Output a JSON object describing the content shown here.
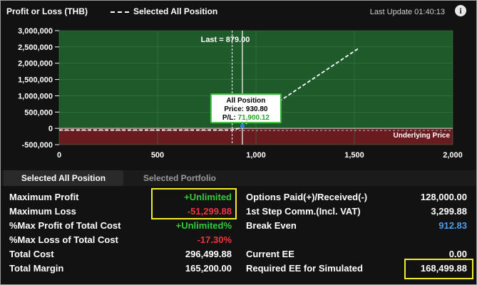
{
  "header": {
    "title": "Profit or Loss (THB)",
    "legend_label": "Selected All Position",
    "last_update": "Last Update 01:40:13",
    "info_icon": "info-icon"
  },
  "chart_data": {
    "type": "line",
    "title": "",
    "xlabel": "",
    "ylabel": "",
    "xlim": [
      0,
      2000
    ],
    "ylim": [
      -500000,
      3000000
    ],
    "x_ticks": [
      0,
      500,
      1000,
      1500,
      2000
    ],
    "x_tick_labels": [
      "0",
      "500",
      "1,000",
      "1,500",
      "2,000"
    ],
    "y_ticks": [
      -500000,
      0,
      500000,
      1000000,
      1500000,
      2000000,
      2500000,
      3000000
    ],
    "y_tick_labels": [
      "-500,000",
      "0",
      "500,000",
      "1,000,000",
      "1,500,000",
      "2,000,000",
      "2,500,000",
      "3,000,000"
    ],
    "series": [
      {
        "name": "Selected All Position",
        "x": [
          0,
          879,
          912.83,
          1520
        ],
        "y": [
          -51299.88,
          -51299.88,
          0,
          2450000
        ]
      }
    ],
    "last_price": {
      "value": 879.0,
      "label": "Last = 879.00"
    },
    "selected_price": 930.8,
    "underlying_price_label": "Underlying Price",
    "tooltip": {
      "title": "All Position",
      "price_label": "Price: 930.80",
      "pl_label_prefix": "P/L: ",
      "pl_value": "71,900.12",
      "x": 930.8,
      "y": 71900.12
    },
    "colors": {
      "profit_zone": "#1f5a2a",
      "loss_zone": "#6a1b1f",
      "line": "#ffffff",
      "marker": "#2d7fe0",
      "tooltip_border": "#3fbf3f"
    }
  },
  "tabs": [
    {
      "label": "Selected All Position",
      "active": true
    },
    {
      "label": "Selected Portfolio",
      "active": false
    }
  ],
  "stats": {
    "max_profit": {
      "label": "Maximum Profit",
      "value": "+Unlimited"
    },
    "max_loss": {
      "label": "Maximum Loss",
      "value": "-51,299.88"
    },
    "pct_max_profit": {
      "label": "%Max Profit of Total Cost",
      "value": "+Unlimited%"
    },
    "pct_max_loss": {
      "label": "%Max Loss of Total Cost",
      "value": "-17.30%"
    },
    "total_cost": {
      "label": "Total Cost",
      "value": "296,499.88"
    },
    "total_margin": {
      "label": "Total Margin",
      "value": "165,200.00"
    },
    "options_paid": {
      "label": "Options Paid(+)/Received(-)",
      "value": "128,000.00"
    },
    "first_step_comm": {
      "label": "1st Step Comm.(Incl. VAT)",
      "value": "3,299.88"
    },
    "break_even": {
      "label": "Break Even",
      "value": "912.83"
    },
    "current_ee": {
      "label": "Current EE",
      "value": "0.00"
    },
    "required_ee": {
      "label": "Required EE for Simulated",
      "value": "168,499.88"
    }
  },
  "colors": {
    "background": "#121212",
    "positive": "#37c93a",
    "negative": "#f0353a",
    "link_blue": "#4f9dee",
    "highlight_box": "#f2ec2e"
  }
}
